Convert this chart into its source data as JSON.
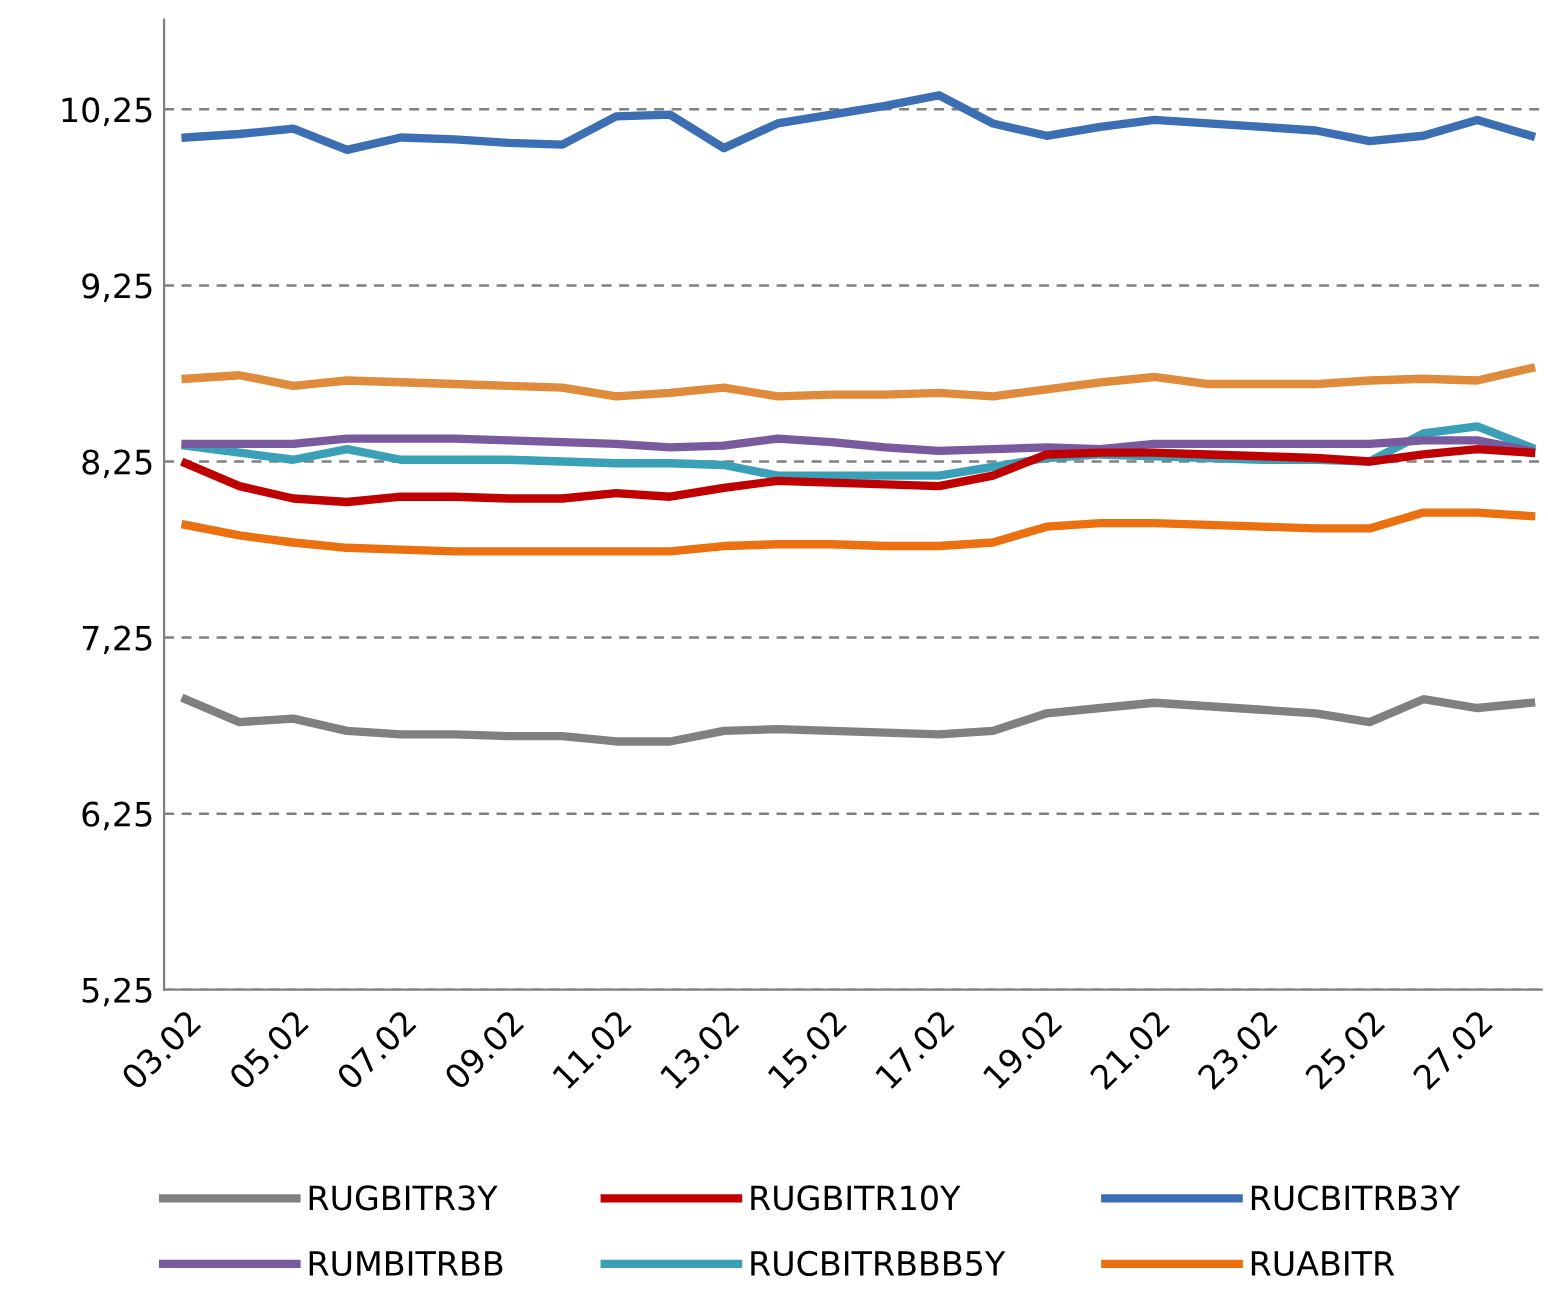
{
  "chart_data": {
    "type": "line",
    "categories": [
      "03.02",
      null,
      "05.02",
      null,
      "07.02",
      null,
      "09.02",
      null,
      "11.02",
      null,
      "13.02",
      null,
      "15.02",
      null,
      "17.02",
      null,
      "19.02",
      null,
      "21.02",
      null,
      "23.02",
      null,
      "25.02",
      null,
      "27.02",
      null
    ],
    "series": [
      {
        "name": "RUGBITR3Y",
        "color": "#808080",
        "values": [
          6.9,
          6.77,
          6.79,
          6.72,
          6.7,
          6.7,
          6.69,
          6.69,
          6.66,
          6.66,
          6.72,
          6.73,
          6.72,
          6.71,
          6.7,
          6.72,
          6.82,
          6.85,
          6.88,
          6.86,
          6.84,
          6.82,
          6.77,
          6.9,
          6.85,
          6.88
        ]
      },
      {
        "name": "RUGBITR10Y",
        "color": "#c00000",
        "values": [
          8.24,
          8.11,
          8.04,
          8.02,
          8.05,
          8.05,
          8.04,
          8.04,
          8.07,
          8.05,
          8.1,
          8.14,
          8.13,
          8.12,
          8.11,
          8.17,
          8.29,
          8.3,
          8.3,
          8.29,
          8.28,
          8.27,
          8.25,
          8.29,
          8.32,
          8.3
        ]
      },
      {
        "name": "RUCBITRB3Y",
        "color": "#3c6eb4",
        "values": [
          10.09,
          10.11,
          10.14,
          10.02,
          10.09,
          10.08,
          10.06,
          10.05,
          10.21,
          10.22,
          10.03,
          10.17,
          10.22,
          10.27,
          10.33,
          10.17,
          10.1,
          10.15,
          10.19,
          10.17,
          10.15,
          10.13,
          10.07,
          10.1,
          10.19,
          10.1
        ]
      },
      {
        "name": "RUMBITRBB",
        "color": "#7a5a9e",
        "values": [
          8.35,
          8.35,
          8.35,
          8.38,
          8.38,
          8.38,
          8.37,
          8.36,
          8.35,
          8.33,
          8.34,
          8.38,
          8.36,
          8.33,
          8.31,
          8.32,
          8.33,
          8.32,
          8.35,
          8.35,
          8.35,
          8.35,
          8.35,
          8.37,
          8.37,
          8.31
        ]
      },
      {
        "name": "RUCBITRBBB5Y",
        "color": "#3aa0b8",
        "values": [
          8.34,
          8.3,
          8.26,
          8.32,
          8.26,
          8.26,
          8.26,
          8.25,
          8.24,
          8.24,
          8.23,
          8.17,
          8.17,
          8.17,
          8.17,
          8.22,
          8.27,
          8.29,
          8.28,
          8.27,
          8.26,
          8.26,
          8.25,
          8.41,
          8.45,
          8.33
        ]
      },
      {
        "color": "#e08a3c",
        "values": [
          8.72,
          8.74,
          8.68,
          8.71,
          8.7,
          8.69,
          8.68,
          8.67,
          8.62,
          8.64,
          8.67,
          8.62,
          8.63,
          8.63,
          8.64,
          8.62,
          8.66,
          8.7,
          8.73,
          8.69,
          8.69,
          8.69,
          8.71,
          8.72,
          8.71,
          8.78
        ]
      },
      {
        "name": "RUABITR",
        "color": "#ed7010",
        "values": [
          7.89,
          7.83,
          7.79,
          7.76,
          7.75,
          7.74,
          7.74,
          7.74,
          7.74,
          7.74,
          7.77,
          7.78,
          7.78,
          7.77,
          7.77,
          7.79,
          7.88,
          7.9,
          7.9,
          7.89,
          7.88,
          7.87,
          7.87,
          7.96,
          7.96,
          7.94
        ]
      }
    ],
    "ylim": [
      5.25,
      10.76
    ],
    "yticks": [
      {
        "value": 5.25,
        "label": "5,25"
      },
      {
        "value": 6.25,
        "label": "6,25"
      },
      {
        "value": 7.25,
        "label": "7,25"
      },
      {
        "value": 8.25,
        "label": "8,25"
      },
      {
        "value": 9.25,
        "label": "9,25"
      },
      {
        "value": 10.25,
        "label": "10,25"
      }
    ],
    "grid": "y",
    "legend": "bottom",
    "line_style": "solid",
    "marker": "none"
  }
}
